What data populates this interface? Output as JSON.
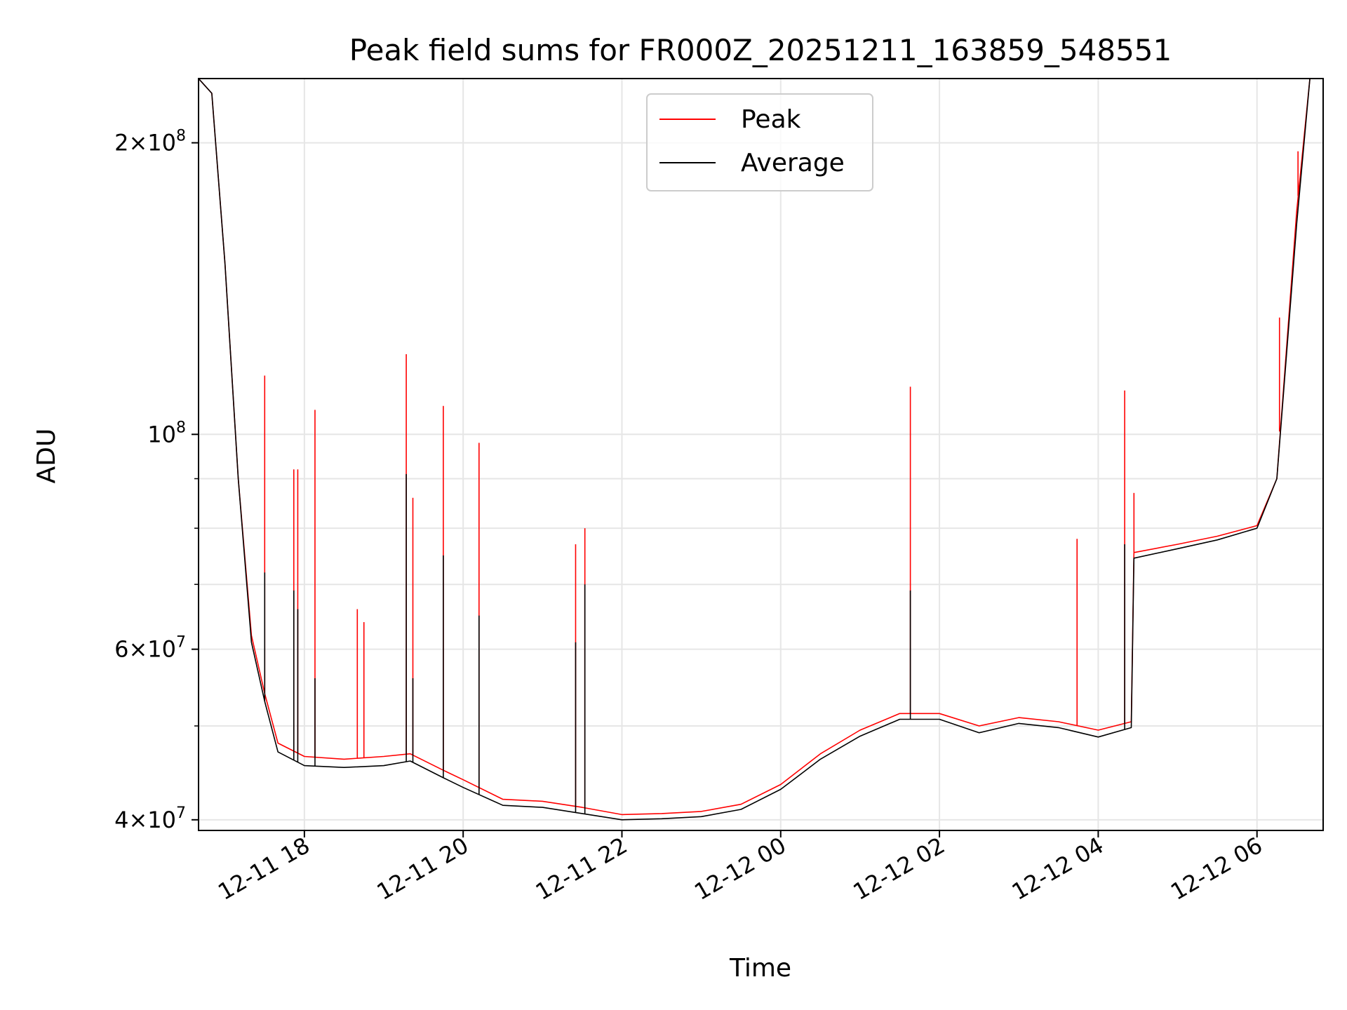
{
  "chart_data": {
    "type": "line",
    "title": "Peak field sums for FR000Z_20251211_163859_548551",
    "xlabel": "Time",
    "ylabel": "ADU",
    "yscale": "log",
    "xlim": [
      "2025-12-11 16:40",
      "2025-12-12 06:50"
    ],
    "ylim": [
      39000000,
      233000000
    ],
    "grid": true,
    "legend_position": "upper center",
    "x_ticks": [
      {
        "value": "2025-12-11 18:00",
        "label": "12-11 18"
      },
      {
        "value": "2025-12-11 20:00",
        "label": "12-11 20"
      },
      {
        "value": "2025-12-11 22:00",
        "label": "12-11 22"
      },
      {
        "value": "2025-12-12 00:00",
        "label": "12-12 00"
      },
      {
        "value": "2025-12-12 02:00",
        "label": "12-12 02"
      },
      {
        "value": "2025-12-12 04:00",
        "label": "12-12 04"
      },
      {
        "value": "2025-12-12 06:00",
        "label": "12-12 06"
      }
    ],
    "y_ticks": [
      {
        "value": 40000000,
        "mantissa": "4",
        "exponent": "7"
      },
      {
        "value": 60000000,
        "mantissa": "6",
        "exponent": "7"
      },
      {
        "value": 100000000,
        "mantissa": "",
        "exponent": "8"
      },
      {
        "value": 200000000,
        "mantissa": "2",
        "exponent": "8"
      }
    ],
    "y_minor_ticks": [
      50000000,
      70000000,
      80000000,
      90000000
    ],
    "series": [
      {
        "name": "Peak",
        "color": "#ff0000",
        "points": [
          [
            "2025-12-11 16:40",
            233000000
          ],
          [
            "2025-12-11 16:50",
            225000000
          ],
          [
            "2025-12-11 17:00",
            150000000
          ],
          [
            "2025-12-11 17:10",
            90000000
          ],
          [
            "2025-12-11 17:20",
            62000000
          ],
          [
            "2025-12-11 17:30",
            54000000
          ],
          [
            "2025-12-11 17:40",
            48000000
          ],
          [
            "2025-12-11 18:00",
            46500000
          ],
          [
            "2025-12-11 18:30",
            46200000
          ],
          [
            "2025-12-11 19:00",
            46500000
          ],
          [
            "2025-12-11 19:20",
            46800000
          ],
          [
            "2025-12-11 19:45",
            45000000
          ],
          [
            "2025-12-11 20:00",
            44000000
          ],
          [
            "2025-12-11 20:30",
            42000000
          ],
          [
            "2025-12-11 21:00",
            41800000
          ],
          [
            "2025-12-11 21:30",
            41200000
          ],
          [
            "2025-12-11 22:00",
            40500000
          ],
          [
            "2025-12-11 22:30",
            40600000
          ],
          [
            "2025-12-11 23:00",
            40800000
          ],
          [
            "2025-12-11 23:30",
            41500000
          ],
          [
            "2025-12-12 00:00",
            43500000
          ],
          [
            "2025-12-12 00:30",
            46800000
          ],
          [
            "2025-12-12 01:00",
            49500000
          ],
          [
            "2025-12-12 01:30",
            51500000
          ],
          [
            "2025-12-12 02:00",
            51500000
          ],
          [
            "2025-12-12 02:30",
            50000000
          ],
          [
            "2025-12-12 03:00",
            51000000
          ],
          [
            "2025-12-12 03:30",
            50500000
          ],
          [
            "2025-12-12 04:00",
            49500000
          ],
          [
            "2025-12-12 04:25",
            50500000
          ],
          [
            "2025-12-12 04:27",
            75500000
          ],
          [
            "2025-12-12 05:00",
            77000000
          ],
          [
            "2025-12-12 05:30",
            78500000
          ],
          [
            "2025-12-12 06:00",
            80500000
          ],
          [
            "2025-12-12 06:15",
            90000000
          ],
          [
            "2025-12-12 06:30",
            170000000
          ],
          [
            "2025-12-12 06:40",
            233000000
          ],
          [
            "2025-12-12 06:50",
            233000000
          ]
        ],
        "spikes": [
          [
            "2025-12-11 17:30",
            115000000
          ],
          [
            "2025-12-11 17:52",
            92000000
          ],
          [
            "2025-12-11 17:55",
            92000000
          ],
          [
            "2025-12-11 18:08",
            106000000
          ],
          [
            "2025-12-11 18:40",
            66000000
          ],
          [
            "2025-12-11 18:45",
            64000000
          ],
          [
            "2025-12-11 19:17",
            121000000
          ],
          [
            "2025-12-11 19:22",
            86000000
          ],
          [
            "2025-12-11 19:45",
            107000000
          ],
          [
            "2025-12-11 20:12",
            98000000
          ],
          [
            "2025-12-11 21:25",
            77000000
          ],
          [
            "2025-12-11 21:32",
            80000000
          ],
          [
            "2025-12-12 01:38",
            112000000
          ],
          [
            "2025-12-12 03:44",
            78000000
          ],
          [
            "2025-12-12 04:20",
            111000000
          ],
          [
            "2025-12-12 04:27",
            87000000
          ],
          [
            "2025-12-12 06:17",
            132000000
          ],
          [
            "2025-12-12 06:31",
            196000000
          ]
        ]
      },
      {
        "name": "Average",
        "color": "#000000",
        "points": [
          [
            "2025-12-11 16:40",
            233000000
          ],
          [
            "2025-12-11 16:50",
            225000000
          ],
          [
            "2025-12-11 17:00",
            150000000
          ],
          [
            "2025-12-11 17:10",
            90000000
          ],
          [
            "2025-12-11 17:20",
            61000000
          ],
          [
            "2025-12-11 17:30",
            53000000
          ],
          [
            "2025-12-11 17:40",
            47000000
          ],
          [
            "2025-12-11 18:00",
            45500000
          ],
          [
            "2025-12-11 18:30",
            45300000
          ],
          [
            "2025-12-11 19:00",
            45500000
          ],
          [
            "2025-12-11 19:20",
            46000000
          ],
          [
            "2025-12-11 19:45",
            44200000
          ],
          [
            "2025-12-11 20:00",
            43200000
          ],
          [
            "2025-12-11 20:30",
            41400000
          ],
          [
            "2025-12-11 21:00",
            41200000
          ],
          [
            "2025-12-11 21:30",
            40600000
          ],
          [
            "2025-12-11 22:00",
            40000000
          ],
          [
            "2025-12-11 22:30",
            40100000
          ],
          [
            "2025-12-11 23:00",
            40300000
          ],
          [
            "2025-12-11 23:30",
            41000000
          ],
          [
            "2025-12-12 00:00",
            43000000
          ],
          [
            "2025-12-12 00:30",
            46200000
          ],
          [
            "2025-12-12 01:00",
            48800000
          ],
          [
            "2025-12-12 01:30",
            50800000
          ],
          [
            "2025-12-12 02:00",
            50800000
          ],
          [
            "2025-12-12 02:30",
            49200000
          ],
          [
            "2025-12-12 03:00",
            50300000
          ],
          [
            "2025-12-12 03:30",
            49800000
          ],
          [
            "2025-12-12 04:00",
            48700000
          ],
          [
            "2025-12-12 04:25",
            49800000
          ],
          [
            "2025-12-12 04:27",
            74500000
          ],
          [
            "2025-12-12 05:00",
            76200000
          ],
          [
            "2025-12-12 05:30",
            77800000
          ],
          [
            "2025-12-12 06:00",
            80000000
          ],
          [
            "2025-12-12 06:15",
            90000000
          ],
          [
            "2025-12-12 06:30",
            165000000
          ],
          [
            "2025-12-12 06:40",
            233000000
          ],
          [
            "2025-12-12 06:50",
            233000000
          ]
        ],
        "spikes": [
          [
            "2025-12-11 17:30",
            72000000
          ],
          [
            "2025-12-11 17:52",
            69000000
          ],
          [
            "2025-12-11 17:55",
            66000000
          ],
          [
            "2025-12-11 18:08",
            56000000
          ],
          [
            "2025-12-11 19:17",
            91000000
          ],
          [
            "2025-12-11 19:22",
            56000000
          ],
          [
            "2025-12-11 19:45",
            75000000
          ],
          [
            "2025-12-11 20:12",
            65000000
          ],
          [
            "2025-12-11 21:25",
            61000000
          ],
          [
            "2025-12-11 21:32",
            70000000
          ],
          [
            "2025-12-12 01:38",
            69000000
          ],
          [
            "2025-12-12 04:20",
            77000000
          ]
        ]
      }
    ]
  }
}
